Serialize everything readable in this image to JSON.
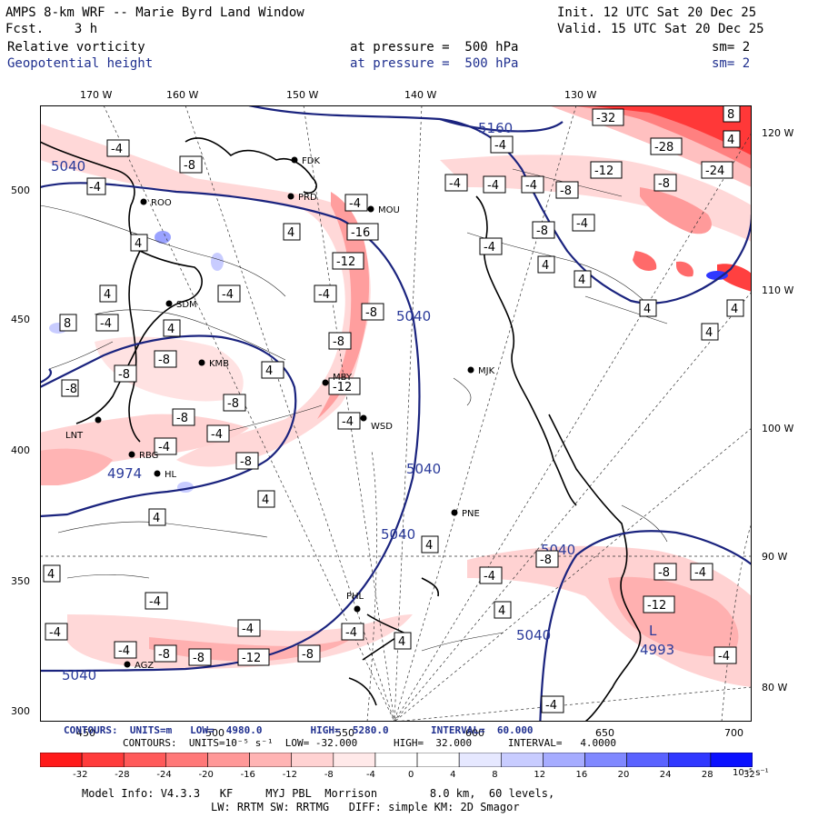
{
  "header": {
    "title": "AMPS 8-km WRF -- Marie Byrd Land Window",
    "fcst": "Fcst.    3 h",
    "init": "Init. 12 UTC Sat 20 Dec 25",
    "valid": "Valid. 15 UTC Sat 20 Dec 25",
    "field1": {
      "name": "Relative vorticity",
      "pressure": "at pressure =  500 hPa",
      "sm": "sm= 2"
    },
    "field2": {
      "name": "Geopotential height",
      "pressure": "at pressure =  500 hPa",
      "sm": "sm= 2"
    }
  },
  "axes": {
    "top_lon": [
      "170 W",
      "160 W",
      "150 W",
      "140 W",
      "130 W"
    ],
    "right_lon": [
      "120 W",
      "110 W",
      "100 W",
      "90 W",
      "80 W"
    ],
    "left_y": [
      "500",
      "450",
      "400",
      "350",
      "300"
    ],
    "bottom_x": [
      "450",
      "500",
      "550",
      "600",
      "650",
      "700"
    ]
  },
  "stations": [
    {
      "id": "FDK"
    },
    {
      "id": "PRD"
    },
    {
      "id": "MOU"
    },
    {
      "id": "ROO"
    },
    {
      "id": "SDM"
    },
    {
      "id": "KMB"
    },
    {
      "id": "MBY"
    },
    {
      "id": "MJK"
    },
    {
      "id": "WSD"
    },
    {
      "id": "LNT"
    },
    {
      "id": "RBG"
    },
    {
      "id": "HL"
    },
    {
      "id": "PNE"
    },
    {
      "id": "PHL"
    },
    {
      "id": "AGZ"
    }
  ],
  "height_labels": [
    "5160",
    "5040",
    "5040",
    "5040",
    "5040",
    "5040",
    "5040",
    "4974",
    "5040",
    "5040"
  ],
  "low": {
    "letter": "L",
    "value": "4993"
  },
  "vort_labels": [
    "-4",
    "-8",
    "-12",
    "-16",
    "-24",
    "-28",
    "-32",
    "4",
    "8"
  ],
  "footer": {
    "contours_hgt": "CONTOURS:  UNITS=m   LOW=  4980.0        HIGH=  5280.0       INTERVAL=  60.000",
    "contours_vort": "CONTOURS:  UNITS=10⁻⁵ s⁻¹  LOW= -32.000      HIGH=  32.000      INTERVAL=   4.0000",
    "model_info": "Model Info: V4.3.3   KF     MYJ PBL  Morrison        8.0 km,  60 levels,",
    "model_info2": "LW: RRTM SW: RRTMG   DIFF: simple KM: 2D Smagor"
  },
  "colorbar": {
    "ticks": [
      "-32",
      "-28",
      "-24",
      "-20",
      "-16",
      "-12",
      "-8",
      "-4",
      "0",
      "4",
      "8",
      "12",
      "16",
      "20",
      "24",
      "28",
      "32"
    ],
    "units": "10⁻⁵ s⁻¹",
    "colors": [
      "#ff1a1a",
      "#ff3b3b",
      "#ff5a5a",
      "#ff7878",
      "#ff9898",
      "#ffb4b4",
      "#ffd2d2",
      "#ffe9e9",
      "#ffffff",
      "#ffffff",
      "#e6e8ff",
      "#c8ccff",
      "#a6acff",
      "#8088ff",
      "#5a62ff",
      "#3038ff",
      "#0a10ff"
    ]
  }
}
